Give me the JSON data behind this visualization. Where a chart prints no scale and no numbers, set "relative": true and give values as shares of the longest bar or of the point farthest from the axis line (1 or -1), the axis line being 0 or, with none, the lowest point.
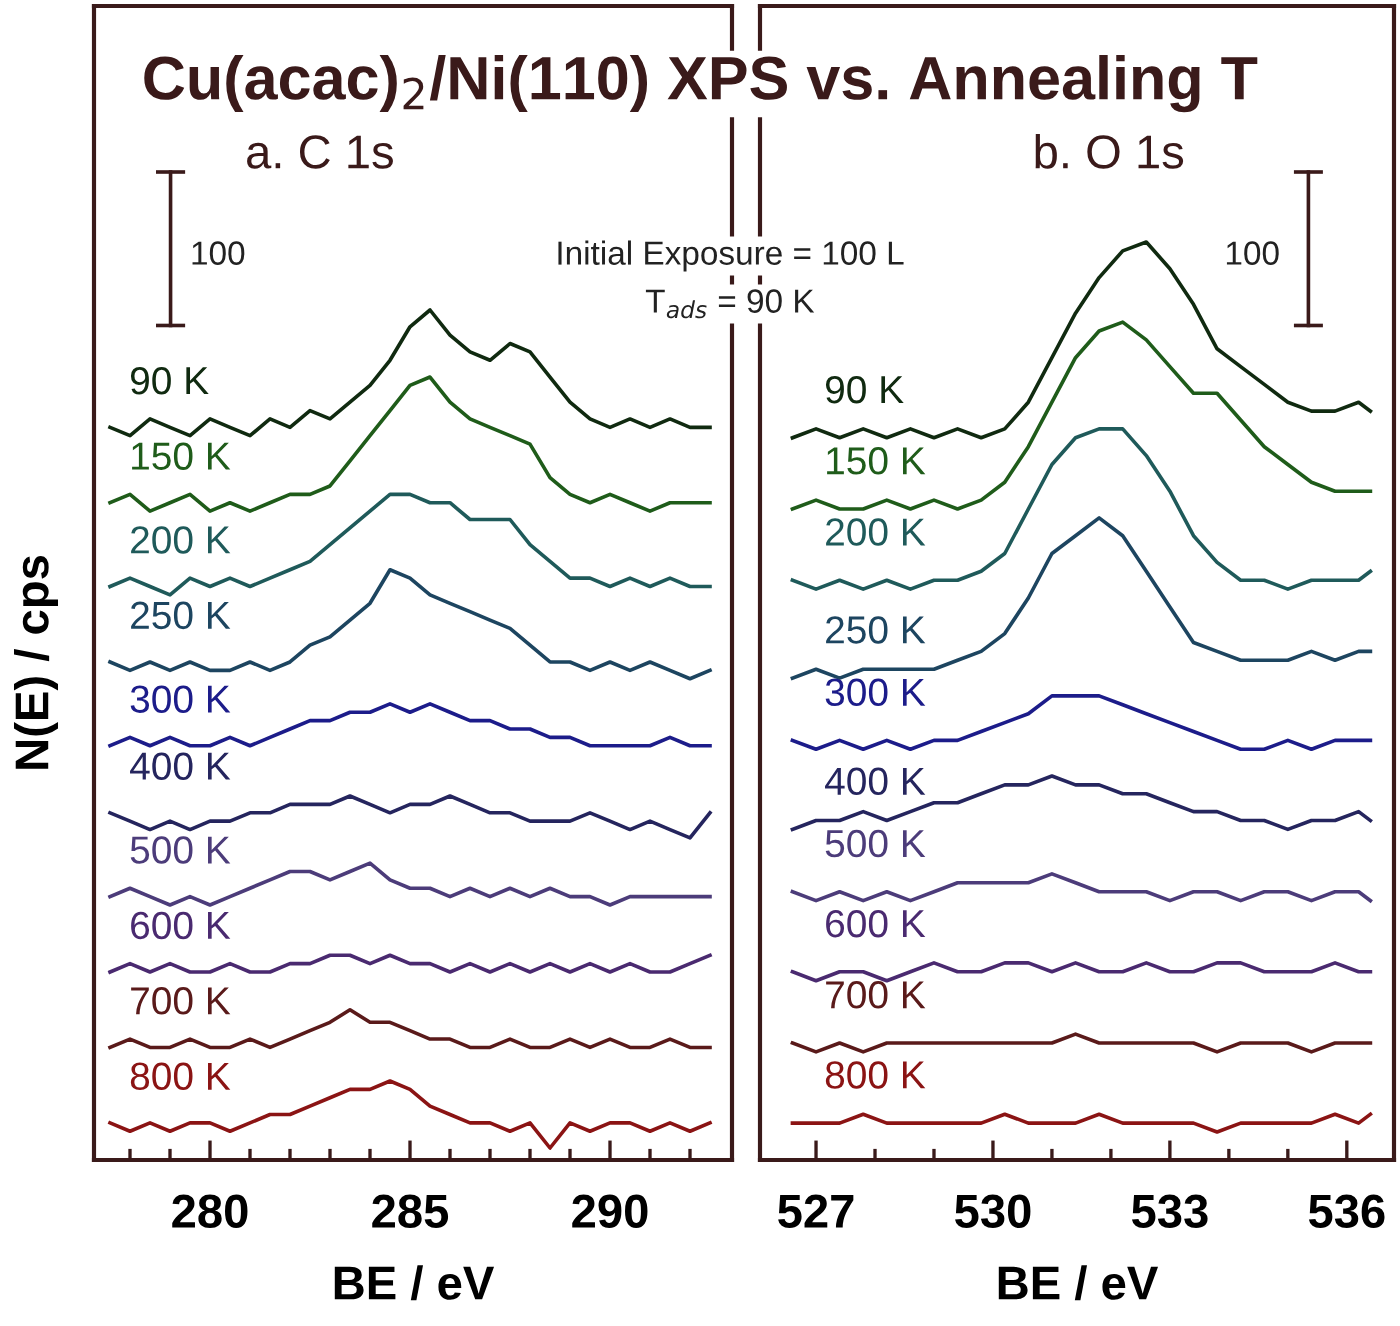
{
  "chart_data": [
    {
      "type": "line",
      "relative": true,
      "title": "a. C 1s",
      "xlabel": "BE / eV",
      "ylabel": "N(E) / cps",
      "legend": false,
      "grid": false,
      "annotations": [
        "Cu(acac)$_{2}$/Ni(110) XPS vs. Annealing T",
        "100",
        "Initial Exposure = 100 L",
        "T$_{ads}$ = 90 K"
      ],
      "xlim": [
        277.1,
        293.05
      ],
      "xticks": [
        {
          "value": 278,
          "label": null
        },
        {
          "value": 279,
          "label": null
        },
        280,
        {
          "value": 281,
          "label": null
        },
        {
          "value": 282,
          "label": null
        },
        {
          "value": 283,
          "label": null
        },
        {
          "value": 284,
          "label": null
        },
        285,
        {
          "value": 286,
          "label": null
        },
        {
          "value": 287,
          "label": null
        },
        {
          "value": 288,
          "label": null
        },
        {
          "value": 289,
          "label": null
        },
        290,
        {
          "value": 291,
          "label": null
        },
        {
          "value": 292,
          "label": null
        }
      ],
      "x": [
        277.5,
        278,
        278.5,
        279,
        279.5,
        280,
        280.5,
        281,
        281.5,
        282,
        282.5,
        283,
        283.5,
        284,
        284.5,
        285,
        285.5,
        286,
        286.5,
        287,
        287.5,
        288,
        288.5,
        289,
        289.5,
        290,
        290.5,
        291,
        291.5,
        292,
        292.5
      ],
      "series": [
        {
          "name": "90 K",
          "color": "#102a10",
          "values": [
            0.86,
            0.85,
            0.87,
            0.86,
            0.85,
            0.87,
            0.86,
            0.85,
            0.87,
            0.86,
            0.88,
            0.87,
            0.89,
            0.91,
            0.94,
            0.98,
            1.0,
            0.97,
            0.95,
            0.94,
            0.96,
            0.95,
            0.92,
            0.89,
            0.87,
            0.86,
            0.87,
            0.86,
            0.87,
            0.86,
            0.86
          ]
        },
        {
          "name": "150 K",
          "color": "#1f5c1a",
          "values": [
            0.77,
            0.78,
            0.76,
            0.77,
            0.78,
            0.76,
            0.77,
            0.76,
            0.77,
            0.78,
            0.78,
            0.79,
            0.82,
            0.85,
            0.88,
            0.91,
            0.92,
            0.89,
            0.87,
            0.86,
            0.85,
            0.84,
            0.8,
            0.78,
            0.77,
            0.78,
            0.77,
            0.76,
            0.77,
            0.77,
            0.77
          ]
        },
        {
          "name": "200 K",
          "color": "#1f5a5a",
          "values": [
            0.67,
            0.68,
            0.67,
            0.66,
            0.68,
            0.67,
            0.68,
            0.67,
            0.68,
            0.69,
            0.7,
            0.72,
            0.74,
            0.76,
            0.78,
            0.78,
            0.77,
            0.77,
            0.75,
            0.75,
            0.75,
            0.72,
            0.7,
            0.68,
            0.68,
            0.67,
            0.68,
            0.67,
            0.68,
            0.67,
            0.67
          ]
        },
        {
          "name": "250 K",
          "color": "#1d4560",
          "values": [
            0.58,
            0.57,
            0.58,
            0.57,
            0.58,
            0.57,
            0.57,
            0.58,
            0.57,
            0.58,
            0.6,
            0.61,
            0.63,
            0.65,
            0.69,
            0.68,
            0.66,
            0.65,
            0.64,
            0.63,
            0.62,
            0.6,
            0.58,
            0.58,
            0.57,
            0.58,
            0.57,
            0.58,
            0.57,
            0.56,
            0.57
          ]
        },
        {
          "name": "300 K",
          "color": "#1c1c8a",
          "values": [
            0.48,
            0.49,
            0.48,
            0.49,
            0.48,
            0.48,
            0.49,
            0.48,
            0.49,
            0.5,
            0.51,
            0.51,
            0.52,
            0.52,
            0.53,
            0.52,
            0.53,
            0.52,
            0.51,
            0.51,
            0.5,
            0.5,
            0.49,
            0.49,
            0.48,
            0.48,
            0.48,
            0.48,
            0.49,
            0.48,
            0.48
          ]
        },
        {
          "name": "400 K",
          "color": "#25255e",
          "values": [
            0.4,
            0.39,
            0.38,
            0.39,
            0.38,
            0.39,
            0.39,
            0.4,
            0.4,
            0.41,
            0.41,
            0.41,
            0.42,
            0.41,
            0.4,
            0.41,
            0.41,
            0.42,
            0.41,
            0.4,
            0.4,
            0.39,
            0.39,
            0.39,
            0.4,
            0.39,
            0.38,
            0.39,
            0.38,
            0.37,
            0.4
          ]
        },
        {
          "name": "500 K",
          "color": "#4c3c7a",
          "values": [
            0.3,
            0.31,
            0.3,
            0.29,
            0.3,
            0.29,
            0.3,
            0.31,
            0.32,
            0.33,
            0.33,
            0.32,
            0.33,
            0.34,
            0.32,
            0.31,
            0.31,
            0.3,
            0.31,
            0.3,
            0.31,
            0.3,
            0.31,
            0.3,
            0.3,
            0.29,
            0.3,
            0.3,
            0.3,
            0.3,
            0.3
          ]
        },
        {
          "name": "600 K",
          "color": "#4a2a70",
          "values": [
            0.21,
            0.22,
            0.21,
            0.22,
            0.21,
            0.21,
            0.22,
            0.21,
            0.21,
            0.22,
            0.22,
            0.23,
            0.23,
            0.22,
            0.23,
            0.22,
            0.22,
            0.21,
            0.22,
            0.21,
            0.22,
            0.21,
            0.22,
            0.21,
            0.22,
            0.21,
            0.22,
            0.21,
            0.21,
            0.22,
            0.23
          ]
        },
        {
          "name": "700 K",
          "color": "#5a1a1a",
          "values": [
            0.12,
            0.13,
            0.12,
            0.12,
            0.13,
            0.12,
            0.12,
            0.13,
            0.12,
            0.13,
            0.14,
            0.15,
            0.165,
            0.15,
            0.15,
            0.14,
            0.13,
            0.13,
            0.12,
            0.12,
            0.13,
            0.12,
            0.12,
            0.13,
            0.12,
            0.13,
            0.12,
            0.12,
            0.13,
            0.12,
            0.12
          ]
        },
        {
          "name": "800 K",
          "color": "#8b1414",
          "values": [
            0.03,
            0.02,
            0.03,
            0.02,
            0.03,
            0.03,
            0.02,
            0.03,
            0.04,
            0.04,
            0.05,
            0.06,
            0.07,
            0.07,
            0.08,
            0.07,
            0.05,
            0.04,
            0.03,
            0.03,
            0.02,
            0.03,
            0.0,
            0.03,
            0.02,
            0.03,
            0.03,
            0.02,
            0.03,
            0.02,
            0.03
          ]
        }
      ]
    },
    {
      "type": "line",
      "relative": true,
      "title": "b. O 1s",
      "xlabel": "BE / eV",
      "legend": false,
      "grid": false,
      "annotations": [
        "100"
      ],
      "xlim": [
        526.05,
        536.8
      ],
      "xticks": [
        527,
        {
          "value": 528,
          "label": null
        },
        {
          "value": 529,
          "label": null
        },
        530,
        {
          "value": 531,
          "label": null
        },
        {
          "value": 532,
          "label": null
        },
        533,
        {
          "value": 534,
          "label": null
        },
        {
          "value": 535,
          "label": null
        },
        536
      ],
      "x": [
        526.6,
        527.0,
        527.4,
        527.8,
        528.2,
        528.6,
        529.0,
        529.4,
        529.8,
        530.2,
        530.6,
        531.0,
        531.4,
        531.8,
        532.2,
        532.6,
        533.0,
        533.4,
        533.8,
        534.2,
        534.6,
        535.0,
        535.4,
        535.8,
        536.2,
        536.4
      ],
      "series": [
        {
          "name": "90 K",
          "color": "#102a10",
          "values": [
            0.78,
            0.79,
            0.78,
            0.79,
            0.78,
            0.79,
            0.78,
            0.79,
            0.78,
            0.79,
            0.82,
            0.87,
            0.92,
            0.96,
            0.99,
            1.0,
            0.97,
            0.93,
            0.88,
            0.86,
            0.84,
            0.82,
            0.81,
            0.81,
            0.82,
            0.81
          ]
        },
        {
          "name": "150 K",
          "color": "#1f5c1a",
          "values": [
            0.7,
            0.71,
            0.7,
            0.7,
            0.71,
            0.7,
            0.71,
            0.7,
            0.71,
            0.73,
            0.77,
            0.82,
            0.87,
            0.9,
            0.91,
            0.89,
            0.86,
            0.83,
            0.83,
            0.8,
            0.77,
            0.75,
            0.73,
            0.72,
            0.72,
            0.72
          ]
        },
        {
          "name": "200 K",
          "color": "#1f5a5a",
          "values": [
            0.62,
            0.61,
            0.62,
            0.61,
            0.62,
            0.61,
            0.62,
            0.62,
            0.63,
            0.65,
            0.7,
            0.75,
            0.78,
            0.79,
            0.79,
            0.76,
            0.72,
            0.67,
            0.64,
            0.62,
            0.62,
            0.61,
            0.62,
            0.62,
            0.62,
            0.63
          ]
        },
        {
          "name": "250 K",
          "color": "#1d4560",
          "values": [
            0.51,
            0.52,
            0.51,
            0.52,
            0.52,
            0.52,
            0.52,
            0.53,
            0.54,
            0.56,
            0.6,
            0.65,
            0.67,
            0.69,
            0.67,
            0.63,
            0.59,
            0.55,
            0.54,
            0.53,
            0.53,
            0.53,
            0.54,
            0.53,
            0.54,
            0.54
          ]
        },
        {
          "name": "300 K",
          "color": "#1c1c8a",
          "values": [
            0.44,
            0.43,
            0.44,
            0.43,
            0.44,
            0.43,
            0.44,
            0.44,
            0.45,
            0.46,
            0.47,
            0.49,
            0.49,
            0.49,
            0.48,
            0.47,
            0.46,
            0.45,
            0.44,
            0.43,
            0.43,
            0.44,
            0.43,
            0.44,
            0.44,
            0.44
          ]
        },
        {
          "name": "400 K",
          "color": "#25255e",
          "values": [
            0.34,
            0.35,
            0.35,
            0.36,
            0.35,
            0.36,
            0.37,
            0.37,
            0.38,
            0.39,
            0.39,
            0.4,
            0.39,
            0.39,
            0.38,
            0.38,
            0.37,
            0.36,
            0.36,
            0.35,
            0.35,
            0.34,
            0.35,
            0.35,
            0.36,
            0.35
          ]
        },
        {
          "name": "500 K",
          "color": "#4c3c7a",
          "values": [
            0.27,
            0.26,
            0.27,
            0.26,
            0.27,
            0.26,
            0.27,
            0.28,
            0.28,
            0.28,
            0.28,
            0.29,
            0.28,
            0.27,
            0.27,
            0.27,
            0.26,
            0.27,
            0.27,
            0.26,
            0.27,
            0.27,
            0.26,
            0.27,
            0.27,
            0.26
          ]
        },
        {
          "name": "600 K",
          "color": "#4a2a70",
          "values": [
            0.18,
            0.17,
            0.18,
            0.18,
            0.17,
            0.18,
            0.19,
            0.18,
            0.18,
            0.19,
            0.19,
            0.18,
            0.19,
            0.18,
            0.18,
            0.19,
            0.18,
            0.18,
            0.19,
            0.19,
            0.18,
            0.18,
            0.18,
            0.19,
            0.18,
            0.18
          ]
        },
        {
          "name": "700 K",
          "color": "#5a1a1a",
          "values": [
            0.1,
            0.09,
            0.1,
            0.09,
            0.1,
            0.1,
            0.1,
            0.1,
            0.1,
            0.1,
            0.1,
            0.1,
            0.11,
            0.1,
            0.1,
            0.1,
            0.1,
            0.1,
            0.09,
            0.1,
            0.1,
            0.1,
            0.09,
            0.1,
            0.1,
            0.1
          ]
        },
        {
          "name": "800 K",
          "color": "#8b1414",
          "values": [
            0.01,
            0.01,
            0.01,
            0.02,
            0.01,
            0.01,
            0.01,
            0.01,
            0.01,
            0.02,
            0.01,
            0.01,
            0.01,
            0.02,
            0.01,
            0.01,
            0.01,
            0.01,
            0.0,
            0.01,
            0.01,
            0.01,
            0.01,
            0.02,
            0.01,
            0.02
          ]
        }
      ]
    }
  ]
}
